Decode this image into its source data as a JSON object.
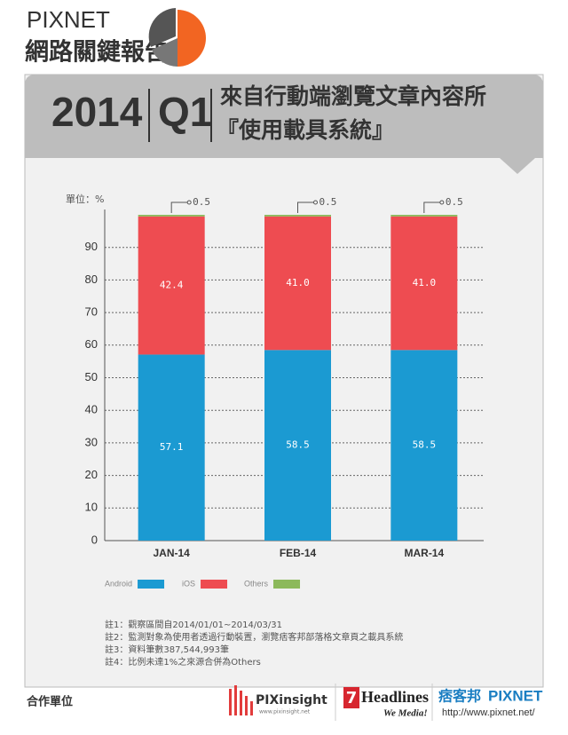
{
  "header": {
    "brand": "PIXNET",
    "report": "網路關鍵報告",
    "year": "2014",
    "quarter": "Q1",
    "title_line1": "來自行動端瀏覽文章內容所",
    "title_line2": "『使用載具系統』"
  },
  "chart_data": {
    "type": "stacked-bar",
    "y_label": "單位：%",
    "categories": [
      "JAN-14",
      "FEB-14",
      "MAR-14"
    ],
    "series": [
      {
        "name": "Android",
        "color": "#1b9ad2",
        "values": [
          57.1,
          58.5,
          58.5
        ]
      },
      {
        "name": "iOS",
        "color": "#ee4c51",
        "values": [
          42.4,
          41.0,
          41.0
        ],
        "value_labels": [
          "42.4",
          "41.0",
          "41.0"
        ]
      },
      {
        "name": "Others",
        "color": "#8cb95b",
        "values": [
          0.5,
          0.5,
          0.5
        ]
      }
    ],
    "ylim": [
      0,
      100
    ],
    "yticks": [
      0,
      10,
      20,
      30,
      40,
      50,
      60,
      70,
      80,
      90
    ],
    "grid": true
  },
  "notes": [
    "註1：觀察區間自2014/01/01~2014/03/31",
    "註2：監測對象為使用者透過行動裝置，瀏覽痞客邦部落格文章頁之載具系統",
    "註3：資料筆數387,544,993筆",
    "註4：比例未達1%之來源合併為Others"
  ],
  "footer": {
    "partners": "合作單位",
    "pixinsight": "PIXinsight",
    "pixinsight_url": "www.pixinsight.net",
    "headlines": "Headlines",
    "headlines_num": "7",
    "headlines_slogan": "We Media!",
    "pixnet_cn": "痞客邦",
    "pixnet": "PIXNET",
    "pixnet_url": "http://www.pixnet.net/"
  }
}
